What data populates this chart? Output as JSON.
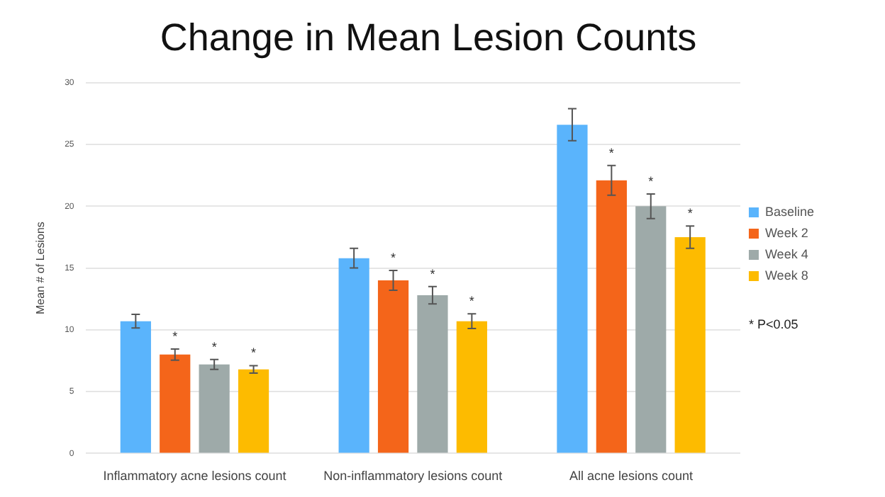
{
  "chart_data": {
    "type": "bar",
    "title": "Change in Mean Lesion Counts",
    "ylabel": "Mean # of Lesions",
    "categories": [
      "Inflammatory acne lesions count",
      "Non-inflammatory lesions count",
      "All acne lesions count"
    ],
    "series": [
      {
        "name": "Baseline",
        "color": "#5ab4fc",
        "values": [
          10.7,
          15.8,
          26.6
        ],
        "errors": [
          0.55,
          0.8,
          1.3
        ]
      },
      {
        "name": "Week 2",
        "color": "#f4651a",
        "values": [
          8.0,
          14.0,
          22.1
        ],
        "errors": [
          0.45,
          0.8,
          1.2
        ],
        "value_labels": [
          "*",
          "*",
          "*"
        ]
      },
      {
        "name": "Week 4",
        "color": "#9eaaa9",
        "values": [
          7.2,
          12.8,
          20.0
        ],
        "errors": [
          0.4,
          0.7,
          1.0
        ],
        "value_labels": [
          "*",
          "*",
          "*"
        ]
      },
      {
        "name": "Week 8",
        "color": "#fdbb00",
        "values": [
          6.8,
          10.7,
          17.5
        ],
        "errors": [
          0.3,
          0.6,
          0.9
        ],
        "value_labels": [
          "*",
          "*",
          "*"
        ]
      }
    ],
    "ylim": [
      0,
      30
    ],
    "yticks": [
      0,
      5,
      10,
      15,
      20,
      25,
      30
    ],
    "grid": "y",
    "legend": "right",
    "annotations": [
      "* P<0.05"
    ]
  }
}
